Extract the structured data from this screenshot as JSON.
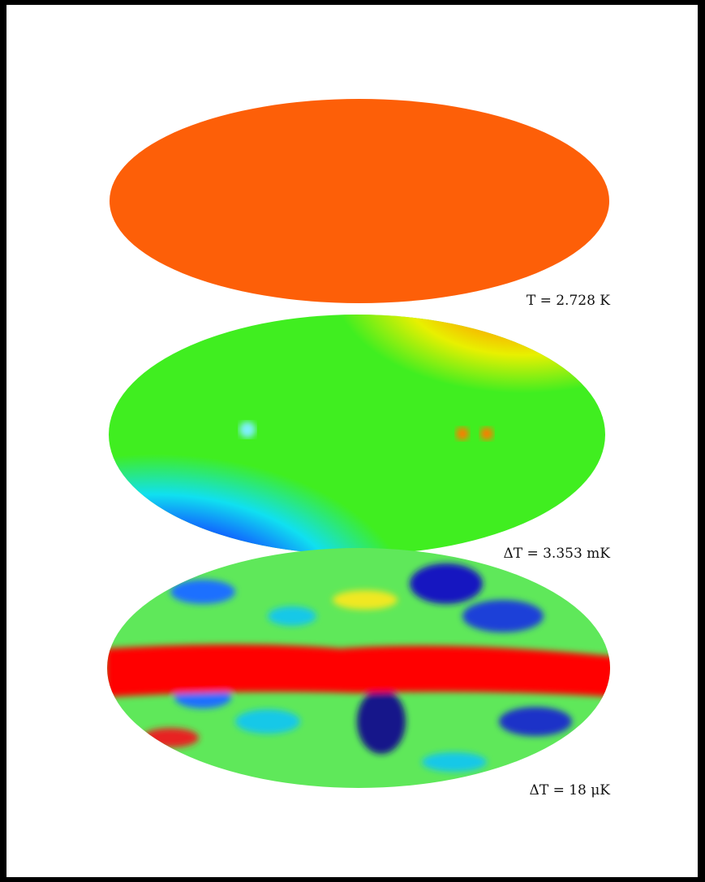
{
  "maps": [
    {
      "label": "T = 2.728 K"
    },
    {
      "label": "ΔT = 3.353 mK"
    },
    {
      "label": "ΔT = 18 μK"
    }
  ]
}
